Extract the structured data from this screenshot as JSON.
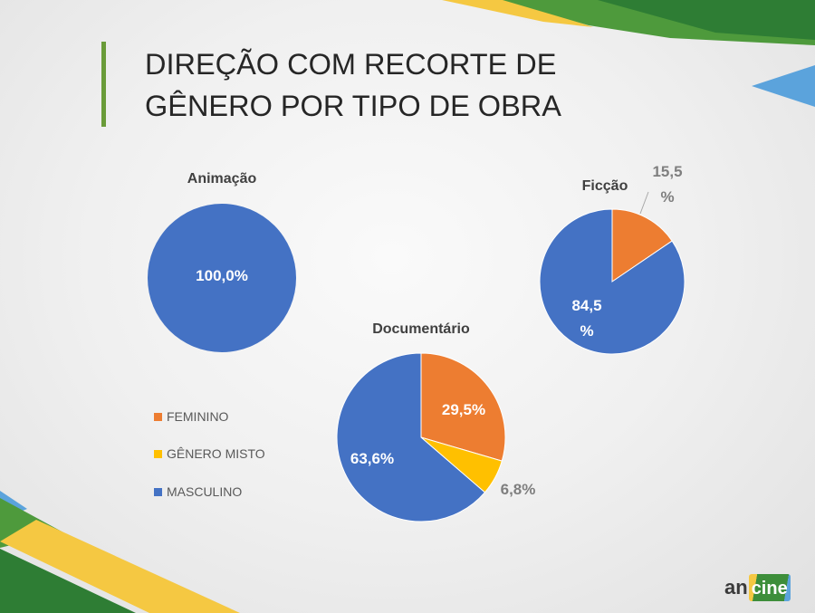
{
  "slide": {
    "title_lines": [
      "DIREÇÃO COM RECORTE DE",
      "GÊNERO POR TIPO DE OBRA"
    ],
    "accent_color": "#6a9b39"
  },
  "brand_colors": {
    "green": "#4e9a3c",
    "dark_green": "#2e7d34",
    "yellow": "#f5c842",
    "blue": "#5ba3dc"
  },
  "colors": {
    "FEMININO": "#ed7d31",
    "GÊNERO MISTO": "#ffc000",
    "MASCULINO": "#4472c4"
  },
  "legend": {
    "position": "left",
    "items": [
      {
        "label": "FEMININO",
        "color": "#ed7d31"
      },
      {
        "label": "GÊNERO MISTO",
        "color": "#ffc000"
      },
      {
        "label": "MASCULINO",
        "color": "#4472c4"
      }
    ]
  },
  "chart_data": [
    {
      "type": "pie",
      "title": "Animação",
      "categories": [
        "MASCULINO"
      ],
      "values": [
        100.0
      ],
      "data_labels": [
        "100,0%"
      ]
    },
    {
      "type": "pie",
      "title": "Ficção",
      "categories": [
        "FEMININO",
        "MASCULINO"
      ],
      "values": [
        15.5,
        84.5
      ],
      "data_labels": [
        "15,5 %",
        "84,5 %"
      ]
    },
    {
      "type": "pie",
      "title": "Documentário",
      "categories": [
        "FEMININO",
        "GÊNERO MISTO",
        "MASCULINO"
      ],
      "values": [
        29.5,
        6.8,
        63.6
      ],
      "data_labels": [
        "29,5%",
        "6,8%",
        "63,6%"
      ]
    }
  ],
  "logo": {
    "part_a": "an",
    "part_b": "cine"
  }
}
